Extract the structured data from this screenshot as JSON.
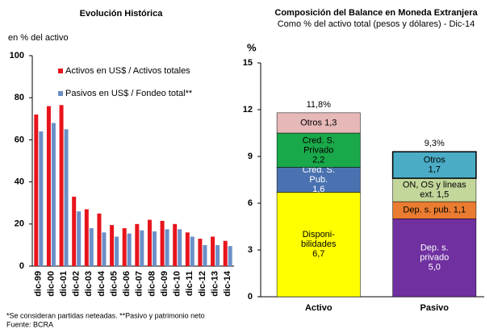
{
  "chart_data": [
    {
      "type": "bar",
      "title": "Evolución Histórica",
      "ylabel": "en % del activo",
      "categories": [
        "dic-99",
        "dic-00",
        "dic-01",
        "dic-02",
        "dic-03",
        "dic-04",
        "dic-05",
        "dic-06",
        "dic-07",
        "dic-08",
        "dic-09",
        "dic-10",
        "dic-11",
        "dic-12",
        "dic-13",
        "dic-14"
      ],
      "series": [
        {
          "name": "Activos en US$ / Activos totales",
          "color": "#e8141c",
          "values": [
            72,
            76,
            76.5,
            33,
            27,
            25,
            19.5,
            18,
            20,
            22,
            21.5,
            20,
            16,
            13,
            14,
            12
          ]
        },
        {
          "name": "Pasivos en US$ / Fondeo total**",
          "color": "#6b8fc7",
          "values": [
            64,
            68,
            65,
            26,
            18,
            16,
            14,
            15.5,
            17,
            16.5,
            17.5,
            17.5,
            14,
            10,
            10,
            9.5
          ]
        }
      ],
      "ylim": [
        0,
        100
      ],
      "yticks": [
        0,
        20,
        40,
        60,
        80,
        100
      ],
      "legend": "upper-left"
    },
    {
      "type": "stacked_bar",
      "title": "Composición del Balance en Moneda Extranjera",
      "subtitle": "Como % del activo total (pesos y dólares) - Dic-14",
      "ylabel": "%",
      "ylim": [
        0,
        15
      ],
      "yticks": [
        0,
        3,
        6,
        9,
        12,
        15
      ],
      "stacks": [
        {
          "category": "Activo",
          "total": 11.8,
          "total_label": "11,8%",
          "segments": [
            {
              "name_lines": [
                "Disponi-",
                "bilidades"
              ],
              "value": 6.7,
              "value_label": "6,7",
              "color": "#ffff00",
              "text_color": "#000"
            },
            {
              "name_lines": [
                "Cred. S.",
                "Pub."
              ],
              "value": 1.6,
              "value_label": "1,6",
              "color": "#4a72b0",
              "text_color": "#fff"
            },
            {
              "name_lines": [
                "Cred. S.",
                "Privado"
              ],
              "value": 2.2,
              "value_label": "2,2",
              "color": "#19a84a",
              "text_color": "#000"
            },
            {
              "name_lines": [
                "Otros"
              ],
              "value": 1.3,
              "value_label": "1,3",
              "color": "#e6b8b8",
              "text_color": "#000"
            }
          ]
        },
        {
          "category": "Pasivo",
          "total": 9.3,
          "total_label": "9,3%",
          "segments": [
            {
              "name_lines": [
                "Dep. s.",
                "privado"
              ],
              "value": 5.0,
              "value_label": "5,0",
              "color": "#7030a0",
              "text_color": "#fff"
            },
            {
              "name_lines": [
                "Dep. s. pub."
              ],
              "value": 1.1,
              "value_label": "1,1",
              "color": "#e97c30",
              "text_color": "#000"
            },
            {
              "name_lines": [
                "ON, OS y lineas",
                "ext."
              ],
              "value": 1.5,
              "value_label": "1,5",
              "color": "#c4d79b",
              "text_color": "#000"
            },
            {
              "name_lines": [
                "Otros"
              ],
              "value": 1.7,
              "value_label": "1,7",
              "color": "#4bacc6",
              "text_color": "#000"
            }
          ]
        }
      ]
    }
  ],
  "footnotes": [
    "*Se consideran partidas neteadas. **Pasivo y patrimonio neto",
    "Fuente: BCRA"
  ]
}
